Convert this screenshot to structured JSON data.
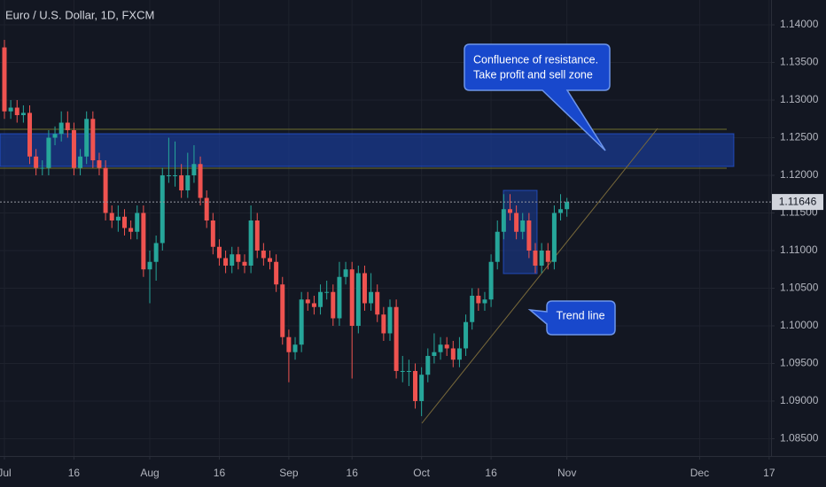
{
  "chart_data": {
    "type": "candlestick",
    "title": "Euro / U.S. Dollar, 1D, FXCM",
    "up_color": "#26a69a",
    "down_color": "#ef5350",
    "grid": true,
    "open": [
      1.137,
      1.1285,
      1.129,
      1.128,
      1.1283,
      1.1225,
      1.121,
      1.121,
      1.125,
      1.1255,
      1.127,
      1.126,
      1.121,
      1.1225,
      1.1275,
      1.122,
      1.121,
      1.115,
      1.114,
      1.1145,
      1.113,
      1.1125,
      1.115,
      1.1075,
      1.1085,
      1.111,
      1.12,
      1.12,
      1.12,
      1.118,
      1.12,
      1.1215,
      1.117,
      1.114,
      1.1105,
      1.109,
      1.108,
      1.1095,
      1.1085,
      1.108,
      1.114,
      1.11,
      1.109,
      1.1085,
      1.1055,
      1.0985,
      1.0965,
      1.0975,
      1.1035,
      1.103,
      1.1025,
      1.1045,
      1.1045,
      1.101,
      1.1065,
      1.1075,
      1.1,
      1.107,
      1.103,
      1.1045,
      1.1015,
      1.099,
      1.1025,
      1.094,
      1.094,
      1.094,
      1.09,
      1.0935,
      1.096,
      1.0965,
      1.0975,
      1.097,
      1.0955,
      1.097,
      1.1005,
      1.104,
      1.103,
      1.1035,
      1.1085,
      1.1125,
      1.1155,
      1.115,
      1.1125,
      1.114,
      1.11,
      1.108,
      1.11,
      1.1085,
      1.115,
      1.1155
    ],
    "high": [
      1.138,
      1.13,
      1.13,
      1.1293,
      1.1293,
      1.1235,
      1.122,
      1.126,
      1.1265,
      1.1285,
      1.1285,
      1.127,
      1.1235,
      1.1285,
      1.1285,
      1.123,
      1.122,
      1.116,
      1.116,
      1.1155,
      1.114,
      1.116,
      1.116,
      1.11,
      1.112,
      1.121,
      1.125,
      1.1245,
      1.1215,
      1.123,
      1.124,
      1.1225,
      1.118,
      1.115,
      1.1115,
      1.11,
      1.1105,
      1.1105,
      1.1095,
      1.116,
      1.115,
      1.111,
      1.11,
      1.1095,
      1.1065,
      1.0995,
      1.0985,
      1.1045,
      1.1045,
      1.104,
      1.1055,
      1.106,
      1.1055,
      1.1085,
      1.1085,
      1.1085,
      1.108,
      1.108,
      1.107,
      1.1055,
      1.1025,
      1.1035,
      1.1035,
      1.096,
      1.0955,
      1.095,
      1.0945,
      1.097,
      1.099,
      1.0985,
      1.0985,
      1.098,
      1.0985,
      1.1015,
      1.105,
      1.105,
      1.1045,
      1.1095,
      1.114,
      1.1175,
      1.1175,
      1.116,
      1.115,
      1.115,
      1.111,
      1.111,
      1.111,
      1.116,
      1.1175,
      1.117
    ],
    "low": [
      1.1275,
      1.1275,
      1.127,
      1.127,
      1.1215,
      1.12,
      1.12,
      1.12,
      1.124,
      1.1245,
      1.125,
      1.12,
      1.12,
      1.1215,
      1.121,
      1.12,
      1.114,
      1.113,
      1.1125,
      1.112,
      1.1115,
      1.1115,
      1.1065,
      1.103,
      1.106,
      1.11,
      1.119,
      1.1185,
      1.117,
      1.117,
      1.119,
      1.116,
      1.113,
      1.1095,
      1.108,
      1.107,
      1.107,
      1.1075,
      1.107,
      1.107,
      1.109,
      1.108,
      1.1075,
      1.1045,
      1.0975,
      1.0925,
      1.0955,
      1.0965,
      1.102,
      1.1015,
      1.1015,
      1.1035,
      1.1,
      1.1,
      1.1055,
      1.093,
      1.099,
      1.102,
      1.102,
      1.1005,
      1.098,
      1.098,
      1.093,
      1.0925,
      1.092,
      1.089,
      1.088,
      1.0925,
      1.095,
      1.0955,
      1.096,
      1.0945,
      1.0945,
      1.096,
      1.0995,
      1.102,
      1.102,
      1.1025,
      1.1075,
      1.1115,
      1.114,
      1.1115,
      1.1115,
      1.109,
      1.107,
      1.107,
      1.1075,
      1.1075,
      1.114,
      1.1145
    ],
    "close": [
      1.1285,
      1.129,
      1.128,
      1.1283,
      1.1225,
      1.121,
      1.121,
      1.125,
      1.1255,
      1.127,
      1.126,
      1.121,
      1.1225,
      1.1275,
      1.122,
      1.121,
      1.115,
      1.114,
      1.1145,
      1.113,
      1.1125,
      1.115,
      1.1075,
      1.1085,
      1.111,
      1.12,
      1.12,
      1.12,
      1.118,
      1.12,
      1.1215,
      1.117,
      1.114,
      1.1105,
      1.109,
      1.108,
      1.1095,
      1.1085,
      1.108,
      1.114,
      1.11,
      1.109,
      1.1085,
      1.1055,
      1.0985,
      1.0965,
      1.0975,
      1.1035,
      1.103,
      1.1025,
      1.1045,
      1.1045,
      1.101,
      1.1065,
      1.1075,
      1.1,
      1.107,
      1.103,
      1.1045,
      1.1015,
      1.099,
      1.1025,
      1.094,
      1.094,
      1.094,
      1.09,
      1.0935,
      1.096,
      1.0965,
      1.0975,
      1.097,
      1.0955,
      1.097,
      1.1005,
      1.104,
      1.103,
      1.1035,
      1.1085,
      1.1125,
      1.1155,
      1.115,
      1.1125,
      1.114,
      1.11,
      1.108,
      1.11,
      1.1085,
      1.115,
      1.1155,
      1.11646
    ],
    "ylim": [
      1.0827,
      1.1433
    ],
    "yticks": [
      {
        "value": 1.14,
        "label": "1.14000"
      },
      {
        "value": 1.135,
        "label": "1.13500"
      },
      {
        "value": 1.13,
        "label": "1.13000"
      },
      {
        "value": 1.125,
        "label": "1.12500"
      },
      {
        "value": 1.12,
        "label": "1.12000"
      },
      {
        "value": 1.115,
        "label": "1.11500"
      },
      {
        "value": 1.11,
        "label": "1.11000"
      },
      {
        "value": 1.105,
        "label": "1.10500"
      },
      {
        "value": 1.1,
        "label": "1.10000"
      },
      {
        "value": 1.095,
        "label": "1.09500"
      },
      {
        "value": 1.09,
        "label": "1.09000"
      },
      {
        "value": 1.085,
        "label": "1.08500"
      }
    ],
    "xlim": [
      -0.7,
      121.3
    ],
    "xticks": [
      {
        "value": 0,
        "label": "Jul"
      },
      {
        "value": 11,
        "label": "16"
      },
      {
        "value": 23,
        "label": "Aug"
      },
      {
        "value": 34,
        "label": "16"
      },
      {
        "value": 45,
        "label": "Sep"
      },
      {
        "value": 55,
        "label": "16"
      },
      {
        "value": 66,
        "label": "Oct"
      },
      {
        "value": 77,
        "label": "16"
      },
      {
        "value": 89,
        "label": "Nov"
      },
      {
        "value": 110,
        "label": "Dec"
      },
      {
        "value": 121,
        "label": "17"
      }
    ],
    "annotations": {
      "resistance": [
        "Confluence of resistance.",
        "Take profit and sell zone"
      ],
      "trend": "Trend line"
    }
  }
}
